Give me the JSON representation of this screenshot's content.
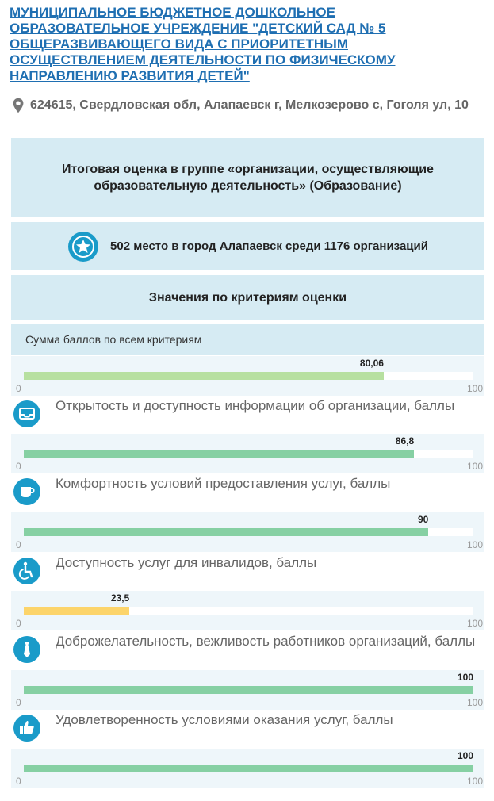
{
  "org": {
    "title": "МУНИЦИПАЛЬНОЕ БЮДЖЕТНОЕ ДОШКОЛЬНОЕ ОБРАЗОВАТЕЛЬНОЕ УЧРЕЖДЕНИЕ \"ДЕТСКИЙ САД № 5 ОБЩЕРАЗВИВАЮЩЕГО ВИДА С ПРИОРИТЕТНЫМ ОСУЩЕСТВЛЕНИЕМ ДЕЯТЕЛЬНОСТИ ПО ФИЗИЧЕСКОМУ НАПРАВЛЕНИЮ РАЗВИТИЯ ДЕТЕЙ\"",
    "address": "624615, Свердловская обл, Алапаевск г, Мелкозерово с, Гоголя ул, 10"
  },
  "summary": {
    "title": "Итоговая оценка в группе «организации, осуществляющие образовательную деятельность» (Образование)",
    "rank": "502 место в город Алапаевск среди 1176 организаций",
    "criteria_header": "Значения по критериям оценки",
    "sum_label": "Сумма баллов по всем критериям"
  },
  "scale": {
    "min": "0",
    "max": "100"
  },
  "scores": [
    {
      "value": 80.06,
      "label": "80,06",
      "color": "#b7e0a0"
    },
    {
      "value": 86.8,
      "label": "86,8",
      "color": "#86d0a3"
    },
    {
      "value": 90,
      "label": "90",
      "color": "#86d0a3"
    },
    {
      "value": 23.5,
      "label": "23,5",
      "color": "#fcd46a"
    },
    {
      "value": 100,
      "label": "100",
      "color": "#86d0a3"
    },
    {
      "value": 100,
      "label": "100",
      "color": "#86d0a3"
    }
  ],
  "criteria": [
    {
      "label": "Открытость и доступность информации об организации, баллы",
      "icon": "inbox-icon"
    },
    {
      "label": "Комфортность условий предоставления услуг, баллы",
      "icon": "cup-icon"
    },
    {
      "label": "Доступность услуг для инвалидов, баллы",
      "icon": "wheelchair-icon"
    },
    {
      "label": "Доброжелательность, вежливость работников организаций, баллы",
      "icon": "tie-icon"
    },
    {
      "label": "Удовлетворенность условиями оказания услуг, баллы",
      "icon": "thumbs-up-icon"
    }
  ],
  "colors": {
    "accent": "#1f6fb2",
    "panel": "#d6ebf3",
    "icon": "#1a9bc9"
  }
}
